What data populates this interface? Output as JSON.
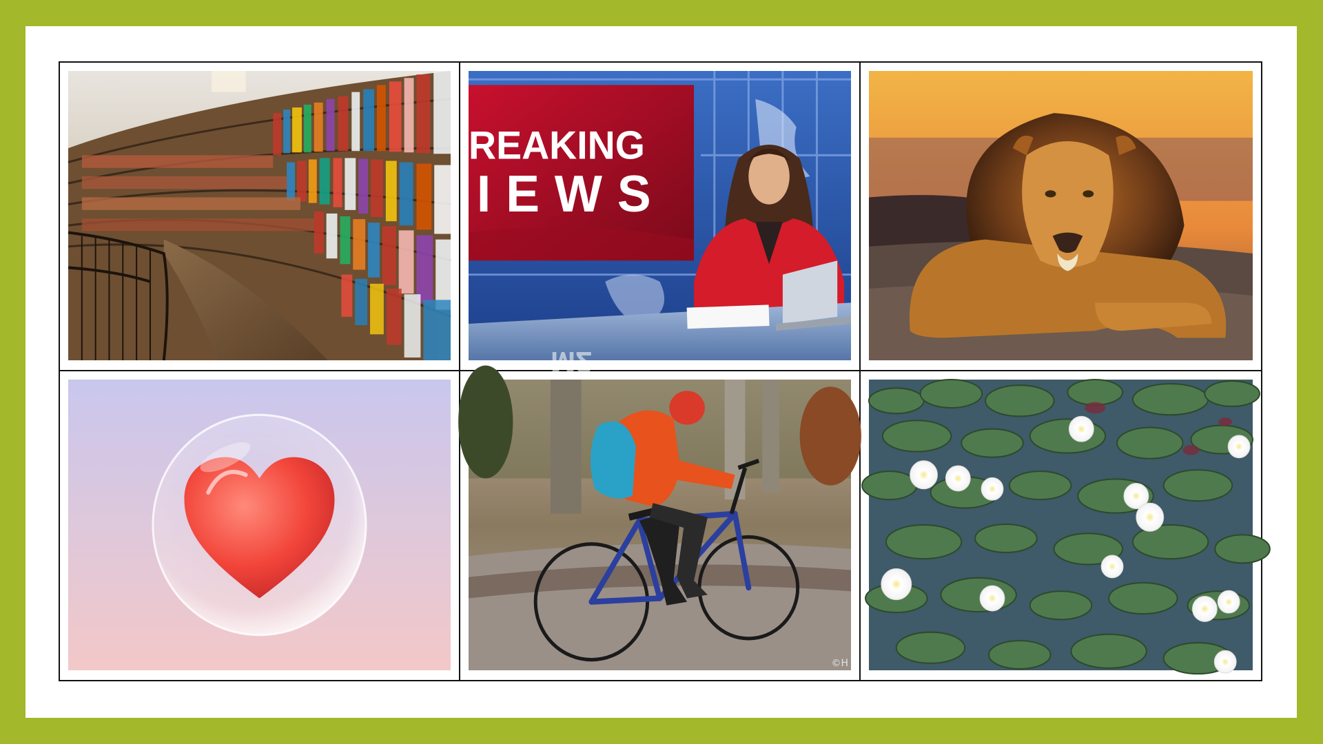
{
  "theme": {
    "frame_color": "#a3b82a",
    "slide_color": "#ffffff",
    "grid_line_color": "#111111"
  },
  "images": [
    {
      "subject": "library-bookshelves",
      "caption": ""
    },
    {
      "subject": "news-anchor",
      "caption": "",
      "banner_line1": "REAKING",
      "banner_line2": "IEWS",
      "desk_text": "M2"
    },
    {
      "subject": "lion",
      "caption": ""
    },
    {
      "subject": "heart-in-bubble",
      "caption": ""
    },
    {
      "subject": "person-on-bicycle",
      "caption": "",
      "watermark": "©H"
    },
    {
      "subject": "water-lilies",
      "caption": ""
    }
  ]
}
